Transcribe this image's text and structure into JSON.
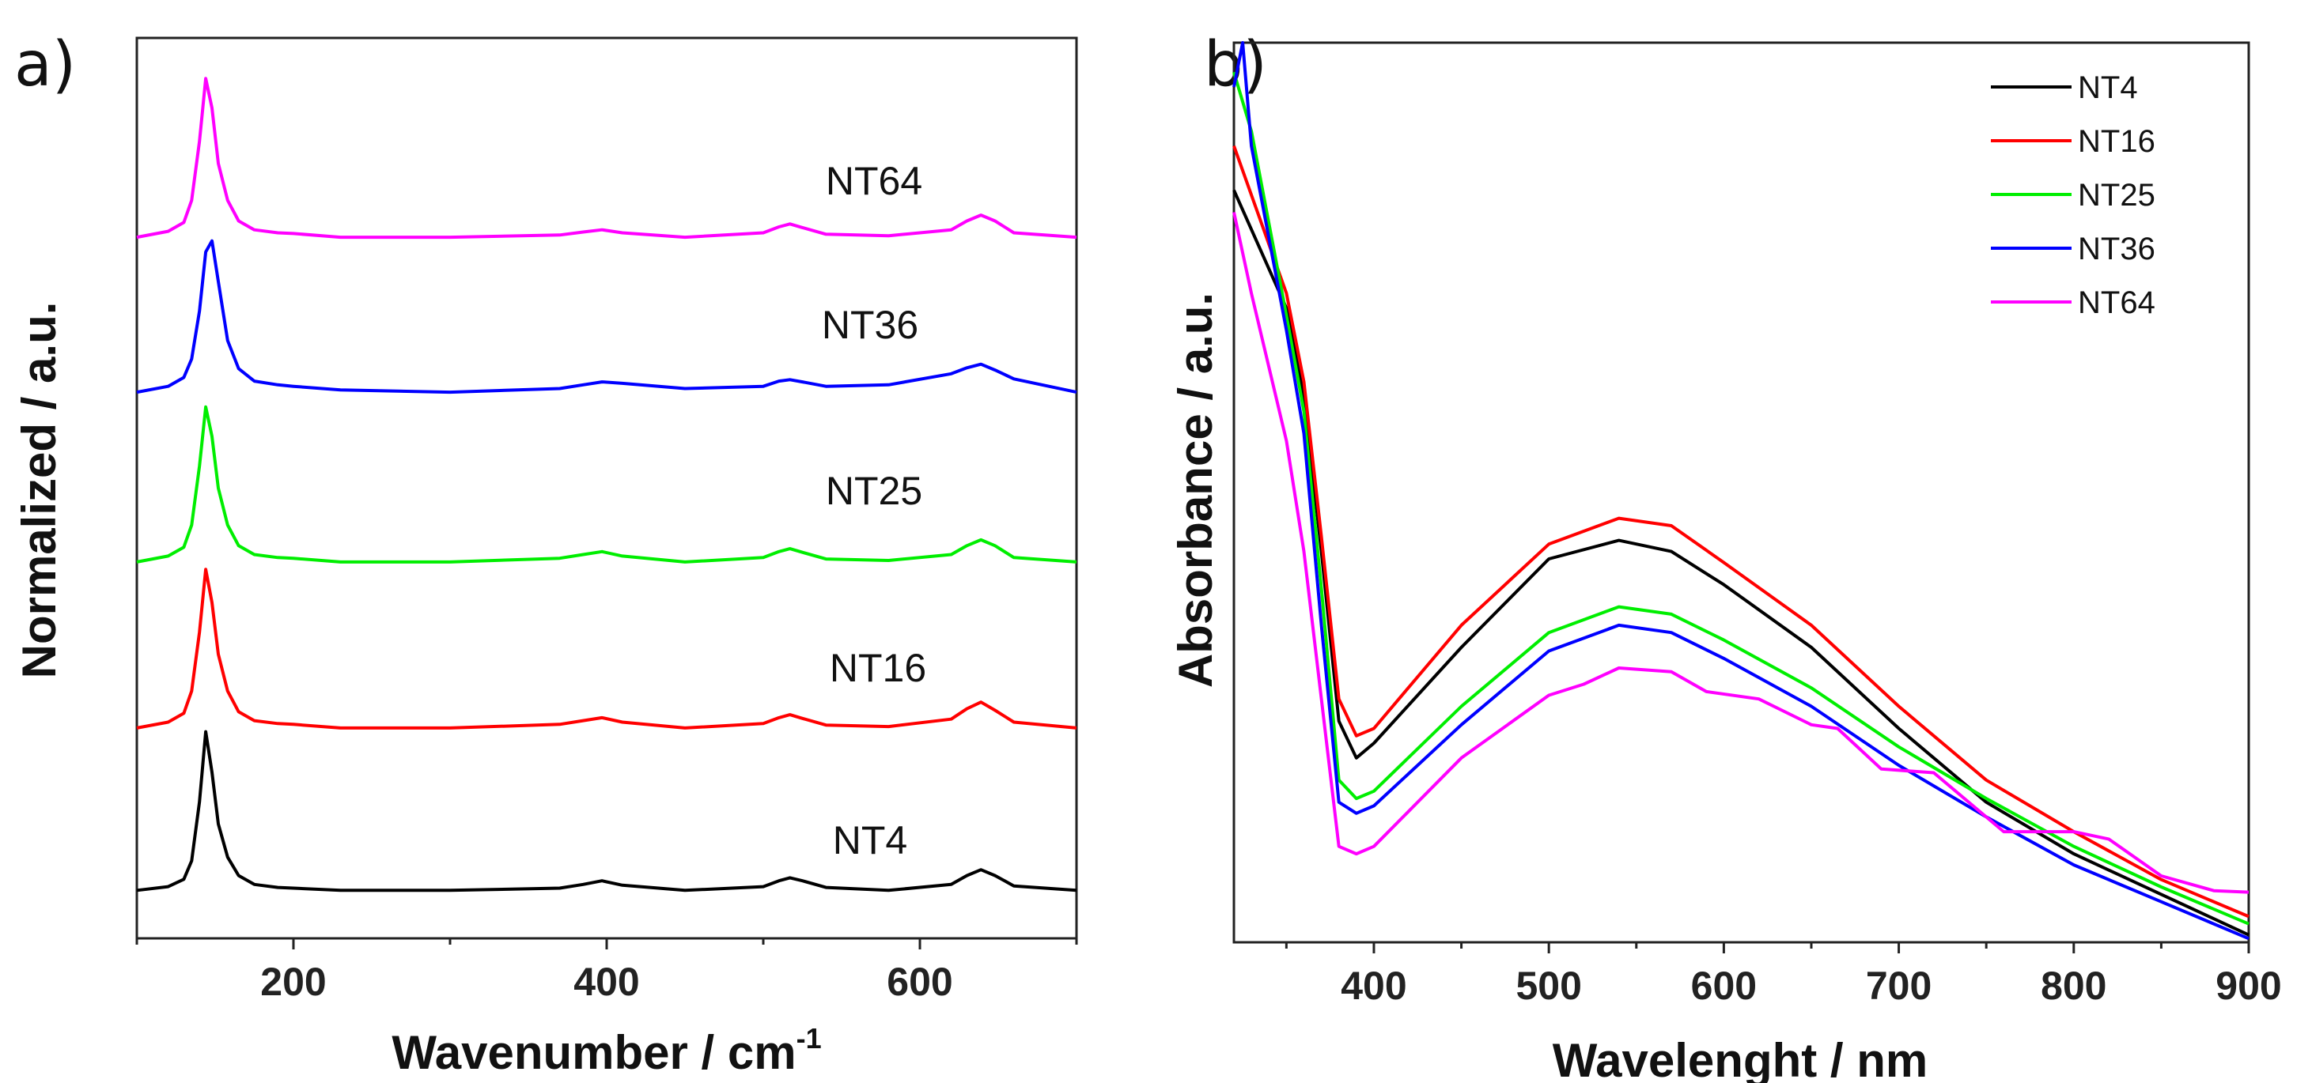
{
  "chart_data": [
    {
      "type": "line",
      "panel_label": "a)",
      "title": "",
      "xlabel": "Wavenumber / cm",
      "xlabel_superscript": "-1",
      "ylabel": "Normalized / a.u.",
      "xlim": [
        100,
        700
      ],
      "ylim": [
        0,
        12.2
      ],
      "xticks": [
        200,
        400,
        600
      ],
      "xminor": [
        100,
        300,
        500,
        700
      ],
      "grid": false,
      "stacked_offsets": true,
      "x": [
        100,
        120,
        130,
        135,
        140,
        144,
        148,
        152,
        158,
        165,
        175,
        190,
        200,
        230,
        300,
        370,
        385,
        397,
        410,
        450,
        500,
        510,
        517,
        525,
        540,
        580,
        620,
        630,
        639,
        648,
        660,
        700
      ],
      "series": [
        {
          "name": "NT4",
          "color": "#000000",
          "offset": 0.65,
          "values": [
            0,
            0.05,
            0.15,
            0.4,
            1.2,
            2.15,
            1.6,
            0.9,
            0.45,
            0.2,
            0.08,
            0.04,
            0.03,
            0,
            0,
            0.03,
            0.08,
            0.13,
            0.07,
            0,
            0.05,
            0.13,
            0.17,
            0.13,
            0.04,
            0,
            0.08,
            0.2,
            0.28,
            0.2,
            0.06,
            0
          ]
        },
        {
          "name": "NT16",
          "color": "#ff0000",
          "offset": 2.85,
          "values": [
            0,
            0.08,
            0.2,
            0.5,
            1.3,
            2.15,
            1.7,
            1.0,
            0.5,
            0.22,
            0.1,
            0.06,
            0.05,
            0,
            0,
            0.05,
            0.1,
            0.14,
            0.08,
            0,
            0.06,
            0.14,
            0.18,
            0.13,
            0.04,
            0.02,
            0.12,
            0.26,
            0.35,
            0.24,
            0.08,
            0
          ]
        },
        {
          "name": "NT25",
          "color": "#00ee00",
          "offset": 5.1,
          "values": [
            0,
            0.08,
            0.2,
            0.5,
            1.3,
            2.1,
            1.7,
            1.0,
            0.5,
            0.22,
            0.1,
            0.06,
            0.05,
            0,
            0,
            0.05,
            0.1,
            0.14,
            0.08,
            0,
            0.06,
            0.14,
            0.18,
            0.13,
            0.04,
            0.02,
            0.1,
            0.22,
            0.3,
            0.22,
            0.06,
            0
          ]
        },
        {
          "name": "NT36",
          "color": "#0000ff",
          "offset": 7.4,
          "values": [
            0,
            0.08,
            0.2,
            0.45,
            1.1,
            1.9,
            2.05,
            1.5,
            0.7,
            0.32,
            0.15,
            0.1,
            0.08,
            0.03,
            0,
            0.05,
            0.1,
            0.14,
            0.12,
            0.05,
            0.08,
            0.15,
            0.17,
            0.14,
            0.08,
            0.1,
            0.25,
            0.33,
            0.38,
            0.3,
            0.18,
            0
          ]
        },
        {
          "name": "NT64",
          "color": "#ff00ff",
          "offset": 9.5,
          "values": [
            0,
            0.08,
            0.2,
            0.5,
            1.3,
            2.15,
            1.75,
            1.0,
            0.5,
            0.22,
            0.1,
            0.06,
            0.05,
            0,
            0,
            0.03,
            0.07,
            0.1,
            0.06,
            0,
            0.06,
            0.14,
            0.18,
            0.13,
            0.04,
            0.02,
            0.1,
            0.22,
            0.3,
            0.22,
            0.06,
            0
          ]
        }
      ]
    },
    {
      "type": "line",
      "panel_label": "b)",
      "title": "",
      "xlabel": "Wavelenght / nm",
      "ylabel": "Absorbance / a.u.",
      "xlim": [
        320,
        900
      ],
      "ylim": [
        0,
        12.2
      ],
      "xticks": [
        400,
        500,
        600,
        700,
        800,
        900
      ],
      "xminor": [
        350,
        450,
        550,
        650,
        750,
        850
      ],
      "grid": false,
      "legend_position": "top-right",
      "series": [
        {
          "name": "NT4",
          "color": "#000000",
          "x": [
            320,
            350,
            360,
            370,
            380,
            390,
            400,
            450,
            500,
            540,
            570,
            600,
            650,
            700,
            750,
            800,
            850,
            900
          ],
          "values": [
            10.2,
            8.6,
            7.4,
            5.3,
            3.0,
            2.5,
            2.7,
            4.0,
            5.2,
            5.45,
            5.3,
            4.85,
            4.0,
            2.9,
            1.9,
            1.2,
            0.65,
            0.1
          ]
        },
        {
          "name": "NT16",
          "color": "#ff0000",
          "x": [
            320,
            350,
            360,
            370,
            380,
            390,
            400,
            450,
            500,
            540,
            570,
            600,
            650,
            700,
            750,
            800,
            850,
            900
          ],
          "values": [
            10.8,
            8.8,
            7.6,
            5.5,
            3.3,
            2.8,
            2.9,
            4.3,
            5.4,
            5.75,
            5.65,
            5.15,
            4.3,
            3.2,
            2.2,
            1.5,
            0.85,
            0.35
          ]
        },
        {
          "name": "NT25",
          "color": "#00ee00",
          "x": [
            320,
            330,
            350,
            360,
            370,
            380,
            390,
            400,
            450,
            500,
            540,
            570,
            600,
            650,
            700,
            750,
            800,
            850,
            900
          ],
          "values": [
            11.8,
            11.0,
            8.5,
            7.2,
            4.8,
            2.2,
            1.95,
            2.05,
            3.2,
            4.2,
            4.55,
            4.45,
            4.1,
            3.45,
            2.65,
            1.95,
            1.3,
            0.75,
            0.25
          ]
        },
        {
          "name": "NT36",
          "color": "#0000ff",
          "x": [
            320,
            325,
            330,
            350,
            360,
            370,
            380,
            390,
            400,
            450,
            500,
            540,
            570,
            600,
            650,
            700,
            750,
            800,
            850,
            900
          ],
          "values": [
            11.6,
            12.2,
            10.8,
            8.3,
            6.9,
            4.3,
            1.9,
            1.75,
            1.85,
            2.95,
            3.95,
            4.3,
            4.2,
            3.85,
            3.2,
            2.4,
            1.7,
            1.05,
            0.55,
            0.05
          ]
        },
        {
          "name": "NT64",
          "color": "#ff00ff",
          "x": [
            320,
            330,
            350,
            360,
            370,
            380,
            390,
            400,
            450,
            500,
            520,
            540,
            570,
            590,
            620,
            650,
            665,
            690,
            720,
            760,
            800,
            820,
            850,
            880,
            900
          ],
          "values": [
            9.9,
            8.8,
            6.8,
            5.3,
            3.3,
            1.3,
            1.2,
            1.3,
            2.5,
            3.35,
            3.5,
            3.72,
            3.67,
            3.4,
            3.3,
            2.95,
            2.9,
            2.35,
            2.3,
            1.5,
            1.5,
            1.4,
            0.9,
            0.7,
            0.68
          ]
        }
      ]
    }
  ]
}
